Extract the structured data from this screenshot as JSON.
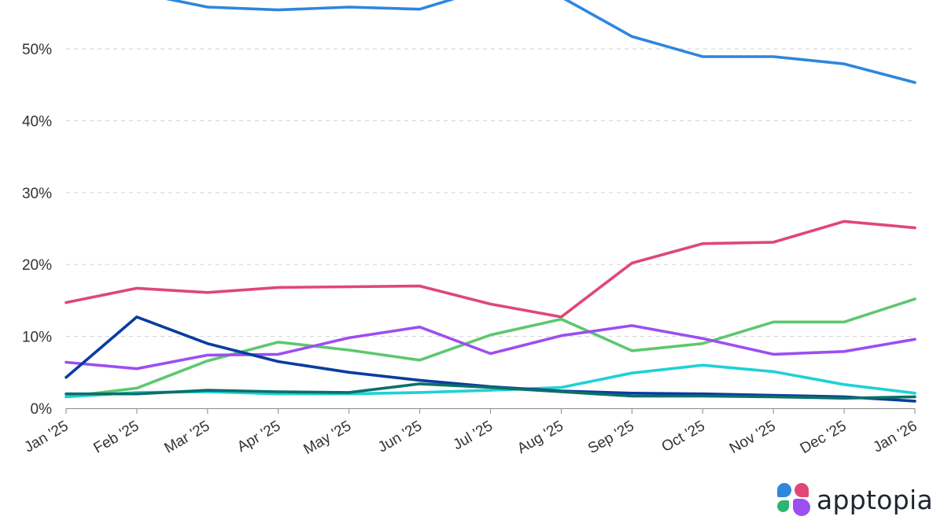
{
  "chart_data": {
    "type": "line",
    "categories": [
      "Jan '25",
      "Feb '25",
      "Mar '25",
      "Apr '25",
      "May '25",
      "Jun '25",
      "Jul '25",
      "Aug '25",
      "Sep '25",
      "Oct '25",
      "Nov '25",
      "Dec '25",
      "Jan '26"
    ],
    "ylim": [
      0,
      57
    ],
    "yticks": [
      0,
      10,
      20,
      30,
      40,
      50
    ],
    "ytick_labels": [
      "0%",
      "10%",
      "20%",
      "30%",
      "40%",
      "50%"
    ],
    "grid": true,
    "series": [
      {
        "color": "#2e86de",
        "values": [
          58.0,
          57.8,
          55.8,
          55.4,
          55.8,
          55.5,
          58.5,
          57.2,
          51.7,
          48.9,
          48.9,
          47.9,
          45.3
        ]
      },
      {
        "color": "#e04776",
        "values": [
          14.7,
          16.7,
          16.1,
          16.8,
          16.9,
          17.0,
          14.5,
          12.7,
          20.2,
          22.9,
          23.1,
          26.0,
          25.1
        ]
      },
      {
        "color": "#5cc86e",
        "values": [
          1.6,
          2.8,
          6.6,
          9.2,
          8.1,
          6.7,
          10.2,
          12.4,
          8.0,
          9.0,
          12.0,
          12.0,
          15.2
        ]
      },
      {
        "color": "#9b4ff0",
        "values": [
          6.4,
          5.5,
          7.4,
          7.5,
          9.8,
          11.3,
          7.6,
          10.1,
          11.5,
          9.7,
          7.5,
          7.9,
          9.6
        ]
      },
      {
        "color": "#1fd1d6",
        "values": [
          1.6,
          2.2,
          2.3,
          2.0,
          2.0,
          2.2,
          2.5,
          2.9,
          4.9,
          6.0,
          5.1,
          3.3,
          2.1
        ]
      },
      {
        "color": "#0a3c9e",
        "values": [
          4.3,
          12.7,
          9.0,
          6.5,
          5.0,
          3.9,
          3.0,
          2.4,
          2.1,
          2.0,
          1.8,
          1.6,
          1.0
        ]
      },
      {
        "color": "#0b6f6a",
        "values": [
          2.0,
          2.0,
          2.5,
          2.3,
          2.2,
          3.4,
          2.9,
          2.3,
          1.7,
          1.7,
          1.6,
          1.4,
          1.6
        ]
      }
    ]
  },
  "logo": {
    "text": "apptopia",
    "icon": "apptopia-logo-icon",
    "colors": [
      "#2e86de",
      "#e04776",
      "#2bb673",
      "#9b4ff0"
    ]
  }
}
